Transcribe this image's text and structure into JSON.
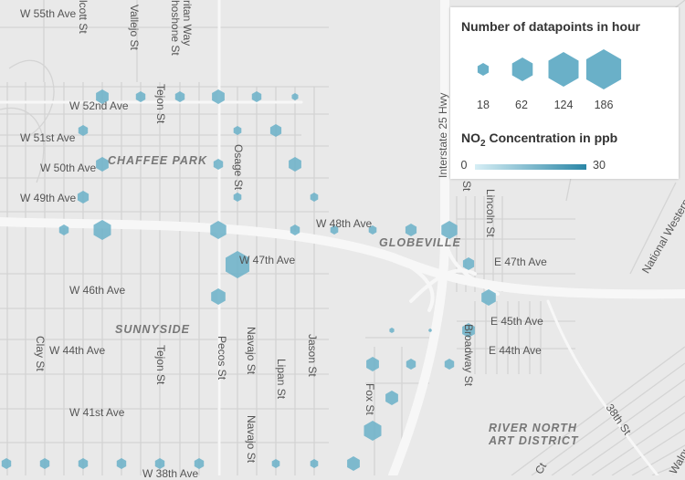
{
  "map": {
    "streets": [
      {
        "id": "w55",
        "text": "W 55th Ave"
      },
      {
        "id": "olcott",
        "text": "lcott St"
      },
      {
        "id": "vallejo",
        "text": "Vallejo St"
      },
      {
        "id": "ritan",
        "text": "ritan Way"
      },
      {
        "id": "shoshone",
        "text": "hoshone St"
      },
      {
        "id": "w52",
        "text": "W 52nd Ave"
      },
      {
        "id": "tejon1",
        "text": "Tejon St"
      },
      {
        "id": "w51",
        "text": "W 51st Ave"
      },
      {
        "id": "w50",
        "text": "W 50th Ave"
      },
      {
        "id": "osage",
        "text": "Osage St"
      },
      {
        "id": "w49",
        "text": "W 49th Ave"
      },
      {
        "id": "w48",
        "text": "W 48th Ave"
      },
      {
        "id": "w47",
        "text": "W 47th Ave"
      },
      {
        "id": "w46",
        "text": "W 46th Ave"
      },
      {
        "id": "w44",
        "text": "W 44th Ave"
      },
      {
        "id": "clay",
        "text": "Clay St"
      },
      {
        "id": "tejon2",
        "text": "Tejon St"
      },
      {
        "id": "pecos",
        "text": "Pecos St"
      },
      {
        "id": "navajo1",
        "text": "Navajo St"
      },
      {
        "id": "lipan",
        "text": "Lipan St"
      },
      {
        "id": "jason",
        "text": "Jason St"
      },
      {
        "id": "w41",
        "text": "W 41st Ave"
      },
      {
        "id": "navajo2",
        "text": "Navajo St"
      },
      {
        "id": "w38",
        "text": "W 38th Ave"
      },
      {
        "id": "i25",
        "text": "Interstate 25 Hwy"
      },
      {
        "id": "st",
        "text": "St"
      },
      {
        "id": "lincoln",
        "text": "Lincoln St"
      },
      {
        "id": "e47",
        "text": "E 47th Ave"
      },
      {
        "id": "e45",
        "text": "E 45th Ave"
      },
      {
        "id": "e44",
        "text": "E 44th Ave"
      },
      {
        "id": "broadway",
        "text": "Broadway St"
      },
      {
        "id": "fox",
        "text": "Fox St"
      },
      {
        "id": "nwd",
        "text": "National Western D"
      },
      {
        "id": "s38",
        "text": "38th St"
      },
      {
        "id": "walnut",
        "text": "Walnu"
      },
      {
        "id": "ct",
        "text": "Ct"
      }
    ],
    "neighborhoods": [
      {
        "id": "chaffee",
        "text": "CHAFFEE PARK"
      },
      {
        "id": "globeville",
        "text": "GLOBEVILLE"
      },
      {
        "id": "sunnyside",
        "text": "SUNNYSIDE"
      },
      {
        "id": "rino1",
        "text": "RIVER NORTH"
      },
      {
        "id": "rino2",
        "text": "ART DISTRICT"
      }
    ],
    "hexbin_color": "#6ab0c8"
  },
  "legend": {
    "size_title": "Number of datapoints in hour",
    "size_values": [
      "18",
      "62",
      "124",
      "186"
    ],
    "color_title_prefix": "NO",
    "color_title_sub": "2",
    "color_title_suffix": " Concentration in ppb",
    "ramp_min": "0",
    "ramp_max": "30",
    "ramp_colors": [
      "#d6eef5",
      "#2a86a6"
    ]
  }
}
